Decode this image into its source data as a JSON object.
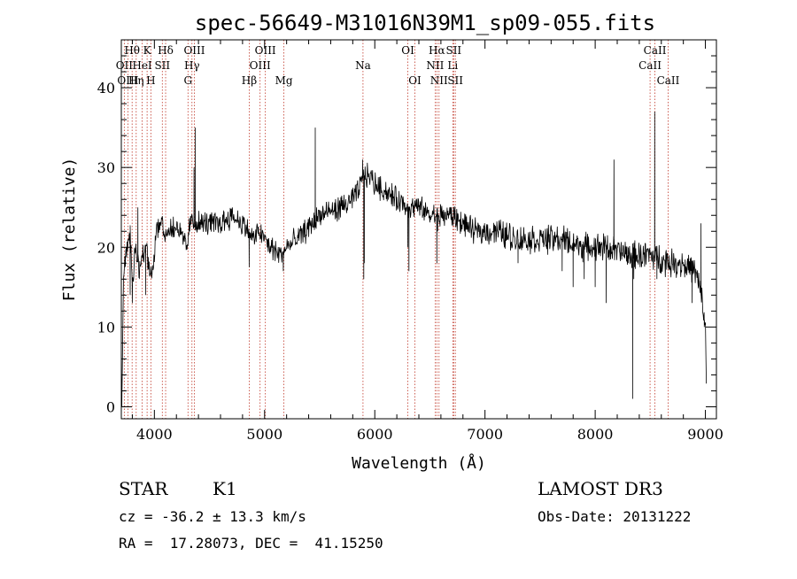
{
  "chart_data": {
    "type": "line",
    "title": "spec-56649-M31016N39M1_sp09-055.fits",
    "xlabel": "Wavelength (Å)",
    "ylabel": "Flux (relative)",
    "xlim": [
      3700,
      9100
    ],
    "ylim": [
      -1.5,
      46
    ],
    "xticks": [
      4000,
      5000,
      6000,
      7000,
      8000,
      9000
    ],
    "xtick_labels": [
      "4000",
      "5000",
      "6000",
      "7000",
      "8000",
      "9000"
    ],
    "yticks": [
      0,
      10,
      20,
      30,
      40
    ],
    "ytick_labels": [
      "0",
      "10",
      "20",
      "30",
      "40"
    ],
    "spectrum_anchors": [
      [
        3700,
        4
      ],
      [
        3705,
        0.5
      ],
      [
        3720,
        17
      ],
      [
        3750,
        20
      ],
      [
        3780,
        22
      ],
      [
        3800,
        15
      ],
      [
        3830,
        21
      ],
      [
        3860,
        17
      ],
      [
        3890,
        19
      ],
      [
        3920,
        20
      ],
      [
        3960,
        17
      ],
      [
        3990,
        18
      ],
      [
        4020,
        22
      ],
      [
        4060,
        23
      ],
      [
        4100,
        22
      ],
      [
        4150,
        22
      ],
      [
        4200,
        23
      ],
      [
        4250,
        21
      ],
      [
        4300,
        20
      ],
      [
        4320,
        23
      ],
      [
        4400,
        23
      ],
      [
        4500,
        23
      ],
      [
        4600,
        23
      ],
      [
        4700,
        24
      ],
      [
        4800,
        23
      ],
      [
        4850,
        22
      ],
      [
        4900,
        21
      ],
      [
        4950,
        22
      ],
      [
        5000,
        21
      ],
      [
        5050,
        20
      ],
      [
        5100,
        19.5
      ],
      [
        5150,
        19
      ],
      [
        5200,
        20
      ],
      [
        5250,
        20.5
      ],
      [
        5300,
        21
      ],
      [
        5400,
        22.5
      ],
      [
        5500,
        24
      ],
      [
        5600,
        24.5
      ],
      [
        5700,
        25
      ],
      [
        5800,
        26
      ],
      [
        5850,
        27
      ],
      [
        5900,
        29
      ],
      [
        5950,
        29
      ],
      [
        6000,
        28
      ],
      [
        6100,
        27
      ],
      [
        6200,
        26
      ],
      [
        6300,
        25
      ],
      [
        6400,
        25
      ],
      [
        6500,
        24
      ],
      [
        6600,
        24
      ],
      [
        6700,
        24
      ],
      [
        6800,
        23
      ],
      [
        6900,
        22
      ],
      [
        7000,
        22
      ],
      [
        7100,
        22
      ],
      [
        7200,
        21.5
      ],
      [
        7300,
        21
      ],
      [
        7400,
        21
      ],
      [
        7500,
        21
      ],
      [
        7600,
        21
      ],
      [
        7700,
        21
      ],
      [
        7800,
        20.5
      ],
      [
        7900,
        20
      ],
      [
        8000,
        20
      ],
      [
        8100,
        20
      ],
      [
        8200,
        19.5
      ],
      [
        8300,
        19
      ],
      [
        8400,
        19
      ],
      [
        8500,
        19
      ],
      [
        8600,
        18.5
      ],
      [
        8700,
        18
      ],
      [
        8800,
        18
      ],
      [
        8900,
        17
      ],
      [
        8950,
        15
      ],
      [
        9000,
        10
      ],
      [
        9010,
        2
      ]
    ],
    "spectrum_spikes": [
      [
        3705,
        0
      ],
      [
        3780,
        14
      ],
      [
        3800,
        13
      ],
      [
        3850,
        25
      ],
      [
        3920,
        14
      ],
      [
        4370,
        35
      ],
      [
        4360,
        30
      ],
      [
        4860,
        17.5
      ],
      [
        5170,
        17
      ],
      [
        5460,
        35
      ],
      [
        5890,
        31
      ],
      [
        5900,
        16
      ],
      [
        5905,
        18
      ],
      [
        6300,
        20
      ],
      [
        6310,
        17
      ],
      [
        6563,
        18
      ],
      [
        6570,
        22
      ],
      [
        7300,
        18
      ],
      [
        7700,
        17
      ],
      [
        7800,
        15
      ],
      [
        7900,
        16
      ],
      [
        8000,
        15
      ],
      [
        8100,
        13
      ],
      [
        8170,
        31
      ],
      [
        8300,
        18
      ],
      [
        8340,
        1
      ],
      [
        8350,
        16
      ],
      [
        8540,
        37
      ],
      [
        8560,
        16
      ],
      [
        8670,
        18
      ],
      [
        8880,
        13
      ],
      [
        8960,
        23
      ],
      [
        8990,
        10
      ]
    ],
    "noise": {
      "amplitude_low": 1.2,
      "amplitude_high": 1.4,
      "step": 4
    },
    "emission_lines": [
      {
        "label": "Hθ",
        "wavelength": 3798,
        "row": 1
      },
      {
        "label": "OII",
        "wavelength": 3727,
        "row": 2
      },
      {
        "label": "OIII",
        "wavelength": 3760,
        "row": 3
      },
      {
        "label": "K",
        "wavelength": 3934,
        "row": 1
      },
      {
        "label": "HeI",
        "wavelength": 3889,
        "row": 2
      },
      {
        "label": "Hη",
        "wavelength": 3835,
        "row": 3
      },
      {
        "label": "Hδ",
        "wavelength": 4102,
        "row": 1
      },
      {
        "label": "SII",
        "wavelength": 4072,
        "row": 2
      },
      {
        "label": "H",
        "wavelength": 3968,
        "row": 3
      },
      {
        "label": "OIII",
        "wavelength": 4363,
        "row": 1
      },
      {
        "label": "Hγ",
        "wavelength": 4341,
        "row": 2
      },
      {
        "label": "G",
        "wavelength": 4305,
        "row": 3
      },
      {
        "label": "OIII",
        "wavelength": 5007,
        "row": 1
      },
      {
        "label": "OIII",
        "wavelength": 4959,
        "row": 2
      },
      {
        "label": "Hβ",
        "wavelength": 4861,
        "row": 3
      },
      {
        "label": "Mg",
        "wavelength": 5175,
        "row": 3
      },
      {
        "label": "Na",
        "wavelength": 5893,
        "row": 2
      },
      {
        "label": "OI",
        "wavelength": 6300,
        "row": 1
      },
      {
        "label": "OI",
        "wavelength": 6364,
        "row": 3
      },
      {
        "label": "Hα",
        "wavelength": 6563,
        "row": 1
      },
      {
        "label": "SII",
        "wavelength": 6716,
        "row": 1
      },
      {
        "label": "NII",
        "wavelength": 6548,
        "row": 2
      },
      {
        "label": "Li",
        "wavelength": 6708,
        "row": 2
      },
      {
        "label": "NII",
        "wavelength": 6583,
        "row": 3
      },
      {
        "label": "SII",
        "wavelength": 6731,
        "row": 3
      },
      {
        "label": "CaII",
        "wavelength": 8542,
        "row": 1
      },
      {
        "label": "CaII",
        "wavelength": 8498,
        "row": 2
      },
      {
        "label": "CaII",
        "wavelength": 8662,
        "row": 3
      }
    ]
  },
  "info": {
    "class_label": "STAR",
    "subclass_label": "K1",
    "cz_text": "cz = -36.2 ± 13.3 km/s",
    "radec_text": "RA =  17.28073, DEC =  41.15250",
    "survey_label": "LAMOST DR3",
    "obs_date_text": "Obs-Date: 20131222"
  }
}
